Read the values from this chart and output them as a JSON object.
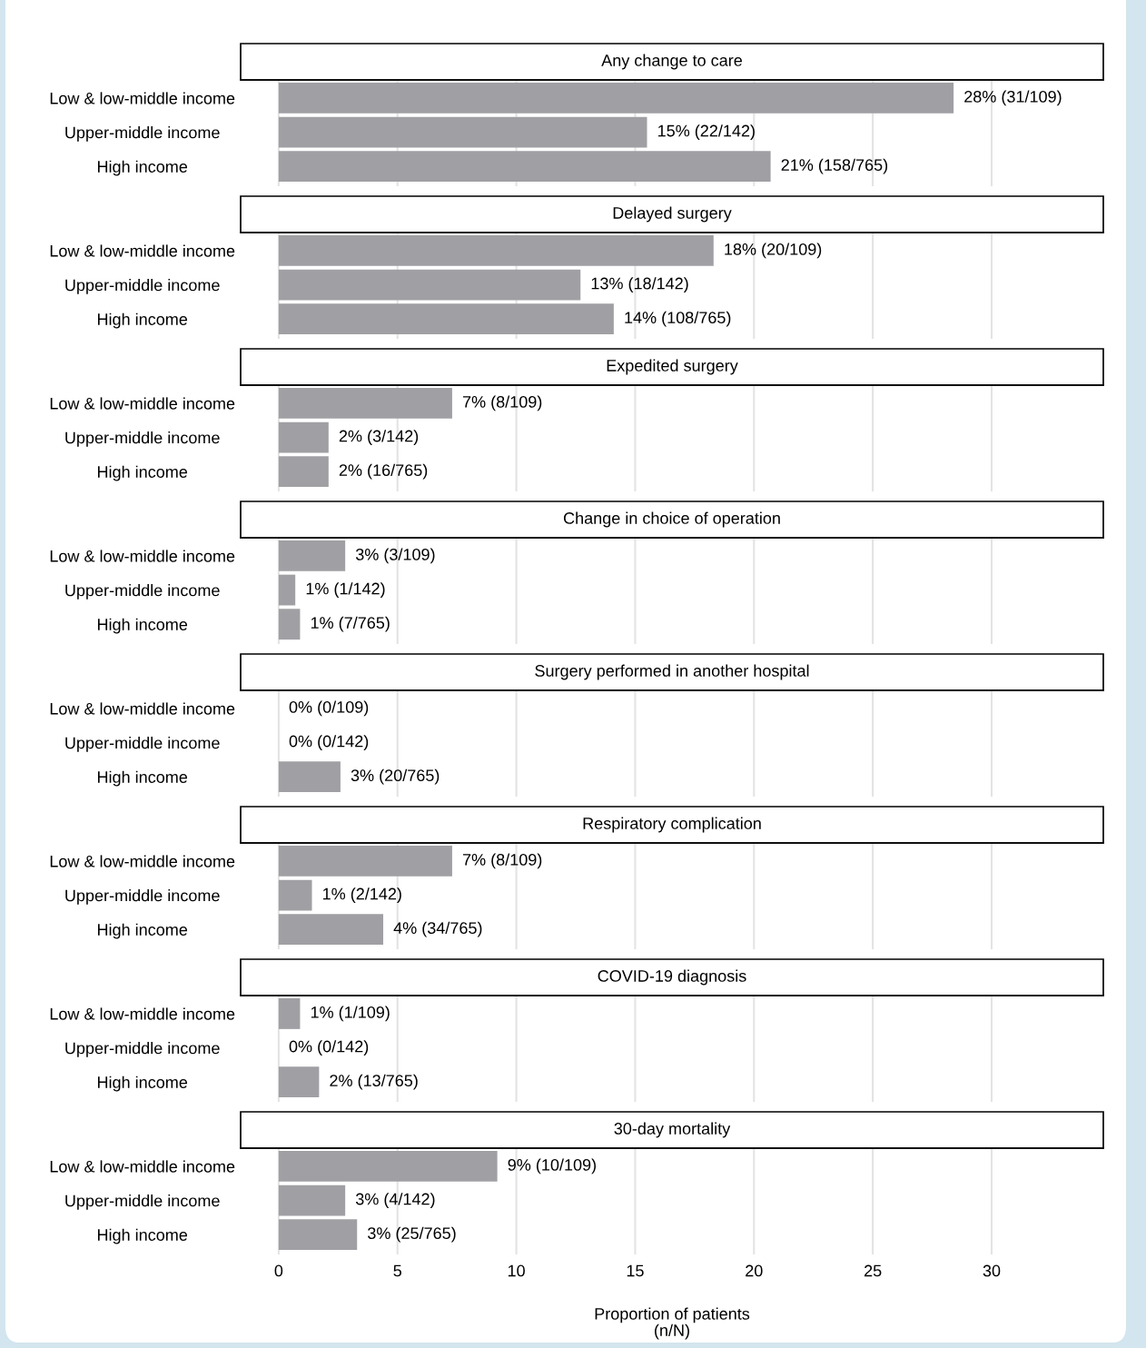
{
  "chart_data": [
    {
      "type": "bar",
      "orientation": "horizontal",
      "title": "Any change to care",
      "categories": [
        "Low & low-middle income",
        "Upper-middle income",
        "High income"
      ],
      "values": [
        28.4,
        15.5,
        20.7
      ],
      "value_labels": [
        "28% (31/109)",
        "15% (22/142)",
        "21% (158/765)"
      ],
      "color": "#a0a0a4",
      "xlim": [
        -1.6,
        34.7
      ],
      "xticks": [
        0,
        5,
        10,
        15,
        20,
        25,
        30
      ],
      "grid": "x",
      "tick_labels": "y"
    },
    {
      "type": "bar",
      "orientation": "horizontal",
      "title": "Delayed surgery",
      "categories": [
        "Low & low-middle income",
        "Upper-middle income",
        "High income"
      ],
      "values": [
        18.3,
        12.7,
        14.1
      ],
      "value_labels": [
        "18% (20/109)",
        "13% (18/142)",
        "14% (108/765)"
      ],
      "color": "#a0a0a4",
      "xlim": [
        -1.6,
        34.7
      ],
      "xticks": [
        0,
        5,
        10,
        15,
        20,
        25,
        30
      ],
      "grid": "x",
      "tick_labels": "y"
    },
    {
      "type": "bar",
      "orientation": "horizontal",
      "title": "Expedited surgery",
      "categories": [
        "Low & low-middle income",
        "Upper-middle income",
        "High income"
      ],
      "values": [
        7.3,
        2.1,
        2.1
      ],
      "value_labels": [
        "7% (8/109)",
        "2% (3/142)",
        "2% (16/765)"
      ],
      "color": "#a0a0a4",
      "xlim": [
        -1.6,
        34.7
      ],
      "xticks": [
        0,
        5,
        10,
        15,
        20,
        25,
        30
      ],
      "grid": "x",
      "tick_labels": "y"
    },
    {
      "type": "bar",
      "orientation": "horizontal",
      "title": "Change in choice of operation",
      "categories": [
        "Low & low-middle income",
        "Upper-middle income",
        "High income"
      ],
      "values": [
        2.8,
        0.7,
        0.9
      ],
      "value_labels": [
        "3% (3/109)",
        "1% (1/142)",
        "1% (7/765)"
      ],
      "color": "#a0a0a4",
      "xlim": [
        -1.6,
        34.7
      ],
      "xticks": [
        0,
        5,
        10,
        15,
        20,
        25,
        30
      ],
      "grid": "x",
      "tick_labels": "y"
    },
    {
      "type": "bar",
      "orientation": "horizontal",
      "title": "Surgery performed in another hospital",
      "categories": [
        "Low & low-middle income",
        "Upper-middle income",
        "High income"
      ],
      "values": [
        0,
        0,
        2.6
      ],
      "value_labels": [
        "0% (0/109)",
        "0% (0/142)",
        "3% (20/765)"
      ],
      "color": "#a0a0a4",
      "xlim": [
        -1.6,
        34.7
      ],
      "xticks": [
        0,
        5,
        10,
        15,
        20,
        25,
        30
      ],
      "grid": "x",
      "tick_labels": "y"
    },
    {
      "type": "bar",
      "orientation": "horizontal",
      "title": "Respiratory complication",
      "categories": [
        "Low & low-middle income",
        "Upper-middle income",
        "High income"
      ],
      "values": [
        7.3,
        1.4,
        4.4
      ],
      "value_labels": [
        "7% (8/109)",
        "1% (2/142)",
        "4% (34/765)"
      ],
      "color": "#a0a0a4",
      "xlim": [
        -1.6,
        34.7
      ],
      "xticks": [
        0,
        5,
        10,
        15,
        20,
        25,
        30
      ],
      "grid": "x",
      "tick_labels": "y"
    },
    {
      "type": "bar",
      "orientation": "horizontal",
      "title": "COVID-19 diagnosis",
      "categories": [
        "Low & low-middle income",
        "Upper-middle income",
        "High income"
      ],
      "values": [
        0.9,
        0,
        1.7
      ],
      "value_labels": [
        "1% (1/109)",
        "0% (0/142)",
        "2% (13/765)"
      ],
      "color": "#a0a0a4",
      "xlim": [
        -1.6,
        34.7
      ],
      "xticks": [
        0,
        5,
        10,
        15,
        20,
        25,
        30
      ],
      "grid": "x",
      "tick_labels": "y"
    },
    {
      "type": "bar",
      "orientation": "horizontal",
      "title": "30-day mortality",
      "categories": [
        "Low & low-middle income",
        "Upper-middle income",
        "High income"
      ],
      "values": [
        9.2,
        2.8,
        3.3
      ],
      "value_labels": [
        "9% (10/109)",
        "3% (4/142)",
        "3% (25/765)"
      ],
      "color": "#a0a0a4",
      "xlim": [
        -1.6,
        34.7
      ],
      "xticks": [
        0,
        5,
        10,
        15,
        20,
        25,
        30
      ],
      "grid": "x",
      "xlabel": "Proportion of patients\n(n/N)"
    }
  ]
}
